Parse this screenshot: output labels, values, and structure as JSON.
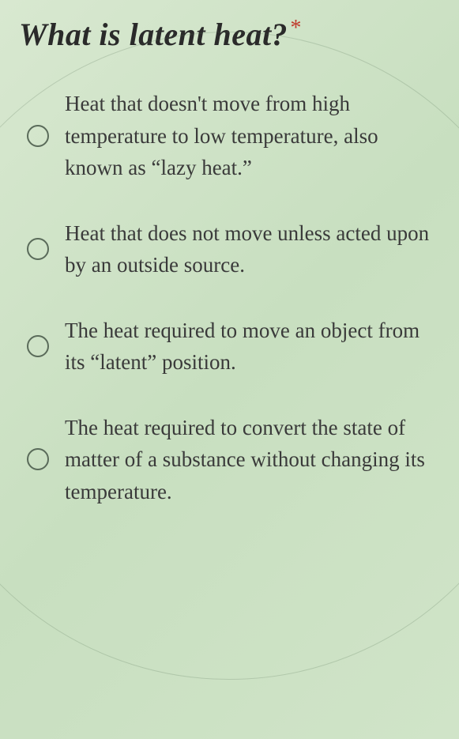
{
  "question": {
    "title": "What is latent heat?",
    "required": true,
    "title_fontsize": 40,
    "title_color": "#2a2a2a",
    "asterisk_color": "#c0392b"
  },
  "options": [
    {
      "text": "Heat that doesn't move from high temperature to low temperature, also known as “lazy heat.”"
    },
    {
      "text": "Heat that does not move unless acted upon by an outside source."
    },
    {
      "text": "The heat required to move an object from its “latent” position."
    },
    {
      "text": "The heat required to convert the state of matter of a substance without changing its temperature."
    }
  ],
  "styling": {
    "background_gradient": [
      "#d8e8d0",
      "#c8dfc0",
      "#d0e4c8"
    ],
    "option_fontsize": 27,
    "option_color": "#3a3a3a",
    "radio_border_color": "#5a6b5a",
    "radio_size": 28,
    "line_height": 1.5
  }
}
